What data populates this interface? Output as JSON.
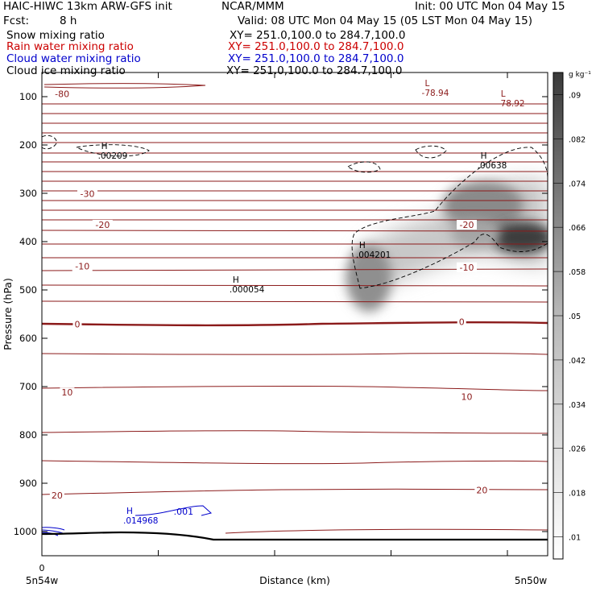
{
  "header": {
    "title_left": "HAIC-HIWC 13km ARW-GFS init",
    "org": "NCAR/MMM",
    "init": "Init: 00 UTC Mon 04 May 15",
    "fcst_label": "Fcst:",
    "fcst_value": "8 h",
    "valid": "Valid: 08 UTC Mon 04 May 15 (05 LST Mon 04 May 15)",
    "fields": [
      {
        "name": "Snow mixing ratio",
        "xy": "XY= 251.0,100.0 to 284.7,100.0",
        "color": "#000000"
      },
      {
        "name": "Rain water mixing ratio",
        "xy": "XY= 251.0,100.0 to 284.7,100.0",
        "color": "#cc0000"
      },
      {
        "name": "Cloud water mixing ratio",
        "xy": "XY= 251.0,100.0 to 284.7,100.0",
        "color": "#0000cc"
      },
      {
        "name": "Cloud ice mixing ratio",
        "xy": "XY= 251.0,100.0 to 284.7,100.0",
        "color": "#000000"
      }
    ]
  },
  "chart_data": {
    "type": "heatmap",
    "xlabel": "Distance (km)",
    "ylabel": "Pressure (hPa)",
    "x_tick_labels": [
      "0"
    ],
    "x_end_labels": [
      "5n54w",
      "5n50w"
    ],
    "y_ticks": [
      100,
      200,
      300,
      400,
      500,
      600,
      700,
      800,
      900,
      1000
    ],
    "ylim": [
      1050,
      50
    ],
    "colorbar": {
      "unit": "g kg⁻¹",
      "ticks": [
        ".01",
        ".018",
        ".026",
        ".034",
        ".042",
        ".05",
        ".058",
        ".066",
        ".074",
        ".082",
        ".09"
      ],
      "levels": [
        0.01,
        0.018,
        0.026,
        0.034,
        0.042,
        0.05,
        0.058,
        0.066,
        0.074,
        0.082,
        0.09
      ]
    },
    "temperature_contour_labels": [
      {
        "text": "-80",
        "x": 0.04,
        "p": 94
      },
      {
        "text": "-30",
        "x": 0.09,
        "p": 301
      },
      {
        "text": "-20",
        "x": 0.12,
        "p": 365
      },
      {
        "text": "-20",
        "x": 0.84,
        "p": 365
      },
      {
        "text": "-10",
        "x": 0.08,
        "p": 451
      },
      {
        "text": "-10",
        "x": 0.84,
        "p": 453
      },
      {
        "text": "0",
        "x": 0.07,
        "p": 571
      },
      {
        "text": "0",
        "x": 0.83,
        "p": 566
      },
      {
        "text": "10",
        "x": 0.05,
        "p": 712
      },
      {
        "text": "10",
        "x": 0.84,
        "p": 721
      },
      {
        "text": "20",
        "x": 0.03,
        "p": 925
      },
      {
        "text": "20",
        "x": 0.87,
        "p": 914
      }
    ],
    "extrema": [
      {
        "mark": "L",
        "value": "-78.94",
        "x": 0.77,
        "p": 85,
        "color": "#8b1a1a"
      },
      {
        "mark": "L",
        "value": "-78.92",
        "x": 0.92,
        "p": 107,
        "color": "#8b1a1a"
      },
      {
        "mark": "H",
        "value": ".00209",
        "x": 0.13,
        "p": 215,
        "color": "#000000"
      },
      {
        "mark": "H",
        "value": ".00638",
        "x": 0.88,
        "p": 235,
        "color": "#000000"
      },
      {
        "mark": "H",
        "value": ".004201",
        "x": 0.64,
        "p": 420,
        "color": "#000000"
      },
      {
        "mark": "H",
        "value": ".000054",
        "x": 0.39,
        "p": 492,
        "color": "#000000"
      },
      {
        "mark": "H",
        "value": ".014968",
        "x": 0.18,
        "p": 970,
        "color": "#0000cc"
      }
    ],
    "cloud_water_label": {
      "text": ".001",
      "x": 0.28,
      "p": 958,
      "color": "#0000cc"
    }
  }
}
